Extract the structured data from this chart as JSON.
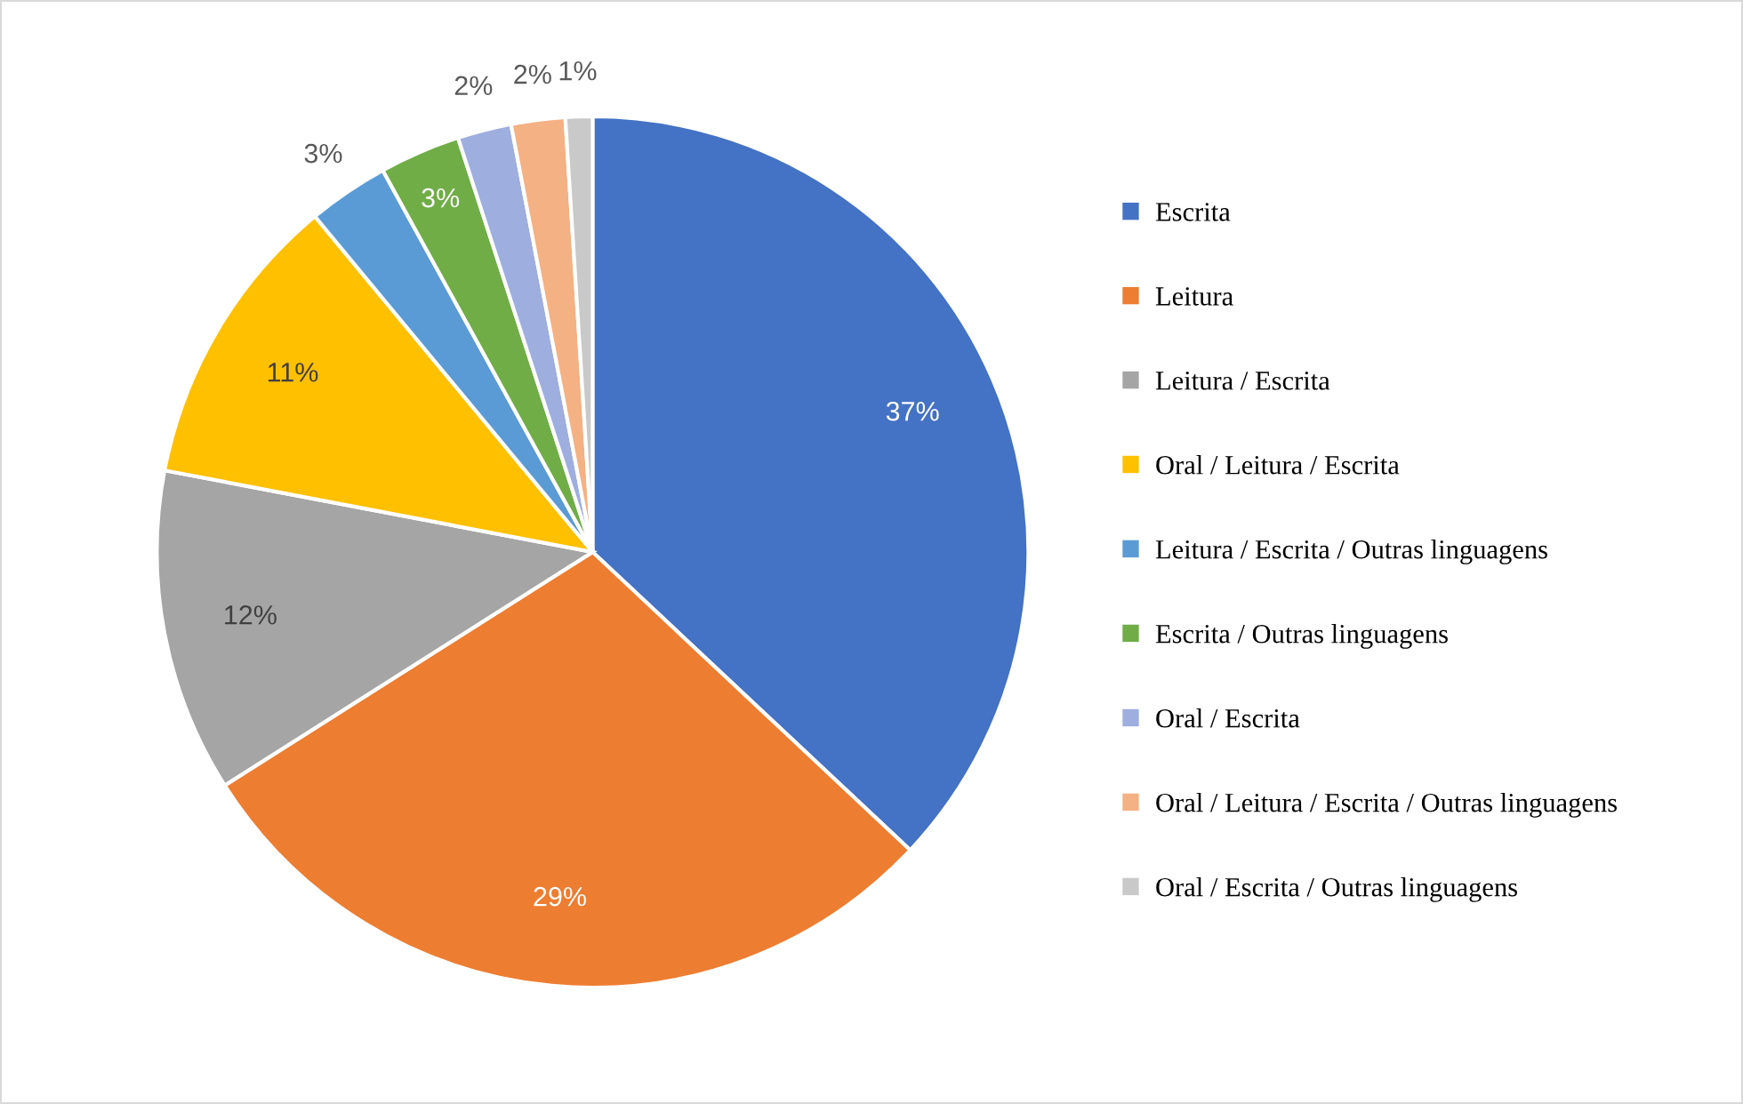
{
  "chart_data": {
    "type": "pie",
    "categories": [
      "Escrita",
      "Leitura",
      "Leitura / Escrita",
      "Oral / Leitura / Escrita",
      "Leitura / Escrita / Outras linguagens",
      "Escrita / Outras linguagens",
      "Oral / Escrita",
      "Oral / Leitura / Escrita / Outras linguagens",
      "Oral / Escrita / Outras linguagens"
    ],
    "values": [
      37,
      29,
      12,
      11,
      3,
      3,
      2,
      2,
      1
    ],
    "colors": [
      "#4472c4",
      "#ed7d31",
      "#a5a5a5",
      "#ffc000",
      "#5b9bd5",
      "#70ad47",
      "#9eaedf",
      "#f4b183",
      "#c9c9c9"
    ],
    "value_labels": [
      "37%",
      "29%",
      "12%",
      "11%",
      "3%",
      "3%",
      "2%",
      "2%",
      "1%"
    ],
    "legend": "right"
  }
}
